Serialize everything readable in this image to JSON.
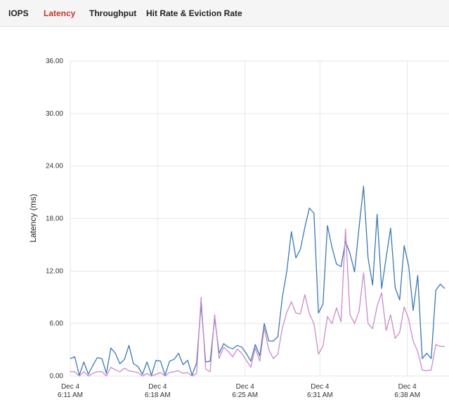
{
  "tabs": [
    {
      "label": "IOPS",
      "active": false
    },
    {
      "label": "Latency",
      "active": true
    },
    {
      "label": "Throughput",
      "active": false
    },
    {
      "label": "Hit Rate & Eviction Rate",
      "active": false
    }
  ],
  "colors": {
    "active_tab": "#c0392b",
    "series_1": "#3a78b5",
    "series_2": "#c98bc9",
    "grid": "#e6e6e6"
  },
  "chart_data": {
    "type": "line",
    "title": "",
    "xlabel": "",
    "ylabel": "Latency (ms)",
    "ylim": [
      0,
      36
    ],
    "y_ticks": [
      "0.00",
      "6.00",
      "12.00",
      "18.00",
      "24.00",
      "30.00",
      "36.00"
    ],
    "x_ticks": [
      {
        "date": "Dec 4",
        "time": "6:11 AM",
        "minute": 0
      },
      {
        "date": "Dec 4",
        "time": "6:18 AM",
        "minute": 7
      },
      {
        "date": "Dec 4",
        "time": "6:25 AM",
        "minute": 14
      },
      {
        "date": "Dec 4",
        "time": "6:31 AM",
        "minute": 20
      },
      {
        "date": "Dec 4",
        "time": "6:38 AM",
        "minute": 27
      }
    ],
    "x_range_minutes": [
      0,
      30
    ],
    "grid": true,
    "series": [
      {
        "values": [
          2.0,
          2.2,
          0.1,
          1.6,
          0.2,
          1.2,
          2.1,
          2.0,
          0.3,
          3.2,
          2.6,
          1.4,
          1.9,
          3.5,
          1.4,
          1.1,
          0.2,
          1.6,
          0.1,
          1.8,
          1.7,
          0.1,
          1.7,
          1.9,
          2.6,
          1.3,
          1.8,
          0.1,
          1.5,
          8.2,
          1.6,
          1.7,
          6.6,
          2.6,
          3.7,
          3.3,
          3.1,
          3.5,
          3.3,
          2.6,
          1.7,
          3.6,
          2.3,
          6.0,
          4.0,
          4.0,
          4.5,
          9.0,
          12.0,
          16.5,
          13.5,
          14.5,
          17.0,
          19.2,
          18.6,
          7.2,
          8.2,
          17.2,
          14.7,
          12.8,
          12.5,
          15.4,
          14.0,
          11.9,
          17.0,
          21.7,
          13.5,
          10.4,
          18.5,
          10.0,
          13.5,
          16.9,
          10.1,
          8.7,
          14.9,
          12.6,
          7.5,
          11.5,
          2.0,
          2.6,
          2.0,
          9.8,
          10.5,
          10.0
        ]
      },
      {
        "values": [
          0.5,
          0.5,
          0.0,
          0.5,
          0.0,
          0.3,
          0.5,
          0.5,
          0.0,
          1.0,
          0.7,
          0.5,
          0.9,
          0.6,
          0.5,
          0.4,
          0.0,
          0.3,
          0.0,
          0.2,
          0.4,
          0.0,
          0.4,
          0.5,
          0.6,
          0.3,
          0.4,
          0.0,
          0.3,
          9.0,
          0.8,
          0.5,
          7.0,
          2.0,
          3.3,
          2.8,
          2.2,
          3.1,
          2.6,
          1.8,
          1.0,
          3.2,
          1.7,
          5.5,
          3.0,
          2.0,
          2.5,
          5.5,
          7.3,
          8.5,
          7.2,
          7.1,
          9.3,
          7.1,
          6.0,
          2.5,
          3.4,
          6.8,
          6.0,
          7.8,
          6.2,
          16.8,
          7.0,
          6.0,
          7.4,
          11.8,
          6.0,
          5.4,
          8.0,
          9.5,
          5.2,
          7.0,
          4.3,
          5.0,
          7.9,
          6.5,
          4.0,
          2.8,
          0.7,
          0.6,
          0.7,
          3.6,
          3.4,
          3.4
        ]
      }
    ]
  }
}
